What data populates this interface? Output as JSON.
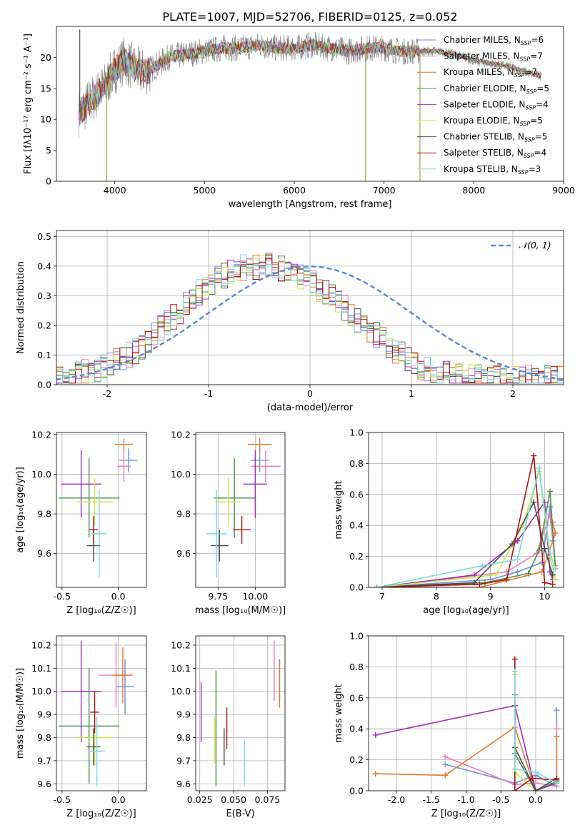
{
  "figure_title": "PLATE=1007, MJD=52706, FIBERID=0125, z=0.052",
  "model_names": [
    "Chabrier MILES",
    "Salpeter MILES",
    "Kroupa MILES",
    "Chabrier ELODIE",
    "Salpeter ELODIE",
    "Kroupa ELODIE",
    "Chabrier STELIB",
    "Salpeter STELIB",
    "Kroupa STELIB"
  ],
  "model_colors": [
    "#6f8fd8",
    "#e57fb8",
    "#e07b2a",
    "#4f8a4f",
    "#9b30b0",
    "#c8e84a",
    "#4a4a4a",
    "#b01010",
    "#7fd8d8"
  ],
  "chart_data": [
    {
      "type": "line",
      "id": "spectrum",
      "title": "PLATE=1007, MJD=52706, FIBERID=0125, z=0.052",
      "xlabel": "wavelength [Angstrom, rest frame]",
      "ylabel": "Flux [f_λ 10^-17 erg cm^-2 s^-1 A^-1]",
      "xlim": [
        3350,
        9000
      ],
      "ylim": [
        0,
        25
      ],
      "xticks": [
        4000,
        5000,
        6000,
        7000,
        8000,
        9000
      ],
      "yticks": [
        0,
        5,
        10,
        15,
        20
      ],
      "legend_position": "top-right",
      "legend": [
        {
          "label": "Chabrier MILES",
          "n": "6"
        },
        {
          "label": "Salpeter MILES",
          "n": "7"
        },
        {
          "label": "Kroupa MILES",
          "n": "7"
        },
        {
          "label": "Chabrier ELODIE",
          "n": "5"
        },
        {
          "label": "Salpeter ELODIE",
          "n": "4"
        },
        {
          "label": "Kroupa ELODIE",
          "n": "5"
        },
        {
          "label": "Chabrier STELIB",
          "n": "5"
        },
        {
          "label": "Salpeter STELIB",
          "n": "4"
        },
        {
          "label": "Kroupa STELIB",
          "n": "3"
        }
      ],
      "continuum": {
        "x": [
          3600,
          3700,
          3800,
          3900,
          4000,
          4100,
          4200,
          4300,
          4400,
          4600,
          4800,
          5000,
          5200,
          5400,
          5600,
          5800,
          6000,
          6200,
          6400,
          6600,
          6800,
          7000,
          7200,
          7400,
          7600,
          7800,
          8000,
          8200,
          8400,
          8600,
          8750
        ],
        "y": [
          11.0,
          12.5,
          14.0,
          15.5,
          18.0,
          19.5,
          18.5,
          17.5,
          18.0,
          20.0,
          20.5,
          21.0,
          21.5,
          21.5,
          22.0,
          21.5,
          21.5,
          22.0,
          21.5,
          21.0,
          21.5,
          21.5,
          21.0,
          21.0,
          21.0,
          20.5,
          19.5,
          19.0,
          18.5,
          17.5,
          17.0
        ]
      },
      "spikes": [
        {
          "x": 3610,
          "y": 24.5
        },
        {
          "x": 3910,
          "y": 0
        },
        {
          "x": 6795,
          "y": 0
        },
        {
          "x": 7400,
          "y": 0
        }
      ]
    },
    {
      "type": "step",
      "id": "residuals",
      "xlabel": "(data-model)/error",
      "ylabel": "Normed distribution",
      "xlim": [
        -2.5,
        2.5
      ],
      "ylim": [
        0,
        0.52
      ],
      "xticks": [
        -2,
        -1,
        0,
        1,
        2
      ],
      "yticks": [
        0.0,
        0.1,
        0.2,
        0.3,
        0.4,
        0.5
      ],
      "legend_position": "top-right",
      "legend_label": "N(0, 1)",
      "bin_width": 0.1,
      "x_start": -2.5,
      "base": [
        0.02,
        0.025,
        0.03,
        0.035,
        0.04,
        0.045,
        0.05,
        0.06,
        0.07,
        0.08,
        0.09,
        0.1,
        0.115,
        0.13,
        0.15,
        0.17,
        0.19,
        0.21,
        0.23,
        0.25,
        0.27,
        0.29,
        0.31,
        0.33,
        0.345,
        0.36,
        0.37,
        0.38,
        0.39,
        0.395,
        0.4,
        0.4,
        0.405,
        0.4,
        0.395,
        0.39,
        0.385,
        0.375,
        0.365,
        0.355,
        0.34,
        0.325,
        0.31,
        0.295,
        0.28,
        0.26,
        0.24,
        0.22,
        0.2,
        0.185,
        0.17,
        0.15,
        0.13,
        0.115,
        0.1,
        0.085,
        0.07,
        0.06,
        0.05,
        0.045,
        0.04,
        0.035,
        0.032,
        0.03,
        0.028,
        0.027,
        0.026,
        0.025,
        0.025,
        0.024,
        0.024,
        0.023,
        0.023,
        0.022,
        0.022,
        0.022,
        0.021,
        0.021,
        0.02,
        0.02
      ]
    },
    {
      "type": "errorbar",
      "id": "age_vs_Z",
      "xlabel": "Z [log10(Z/Z_sun)]",
      "ylabel": "age [log10(age/yr)]",
      "xlim": [
        -0.55,
        0.25
      ],
      "ylim": [
        9.43,
        10.21
      ],
      "xticks": [
        -0.5,
        0.0
      ],
      "yticks": [
        9.6,
        9.8,
        10.0,
        10.2
      ],
      "points": [
        {
          "model": 0,
          "x": 0.09,
          "y": 10.07,
          "xerr": 0.08,
          "yerr": 0.06
        },
        {
          "model": 1,
          "x": 0.05,
          "y": 10.04,
          "xerr": 0.06,
          "yerr": 0.08
        },
        {
          "model": 2,
          "x": 0.05,
          "y": 10.15,
          "xerr": 0.08,
          "yerr": 0.03
        },
        {
          "model": 3,
          "x": -0.26,
          "y": 9.88,
          "xerr": 0.27,
          "yerr": 0.2
        },
        {
          "model": 4,
          "x": -0.33,
          "y": 9.95,
          "xerr": 0.18,
          "yerr": 0.17
        },
        {
          "model": 5,
          "x": -0.21,
          "y": 9.86,
          "xerr": 0.16,
          "yerr": 0.12
        },
        {
          "model": 6,
          "x": -0.22,
          "y": 9.64,
          "xerr": 0.06,
          "yerr": 0.08
        },
        {
          "model": 7,
          "x": -0.22,
          "y": 9.72,
          "xerr": 0.04,
          "yerr": 0.07
        },
        {
          "model": 8,
          "x": -0.17,
          "y": 9.7,
          "xerr": 0.07,
          "yerr": 0.22
        }
      ]
    },
    {
      "type": "errorbar",
      "id": "age_vs_mass",
      "xlabel": "mass [log10(M/M_sun)]",
      "ylabel": "",
      "xlim": [
        9.6,
        10.2
      ],
      "ylim": [
        9.43,
        10.21
      ],
      "xticks": [
        9.75,
        10.0
      ],
      "yticks": [
        9.6,
        9.8,
        10.0,
        10.2
      ],
      "points": [
        {
          "model": 0,
          "x": 10.03,
          "y": 10.07,
          "xerr": 0.06,
          "yerr": 0.06
        },
        {
          "model": 1,
          "x": 10.07,
          "y": 10.04,
          "xerr": 0.1,
          "yerr": 0.08
        },
        {
          "model": 2,
          "x": 10.03,
          "y": 10.15,
          "xerr": 0.08,
          "yerr": 0.03
        },
        {
          "model": 3,
          "x": 9.86,
          "y": 9.88,
          "xerr": 0.14,
          "yerr": 0.2
        },
        {
          "model": 4,
          "x": 10.0,
          "y": 9.95,
          "xerr": 0.08,
          "yerr": 0.17
        },
        {
          "model": 5,
          "x": 9.82,
          "y": 9.86,
          "xerr": 0.08,
          "yerr": 0.12
        },
        {
          "model": 6,
          "x": 9.76,
          "y": 9.64,
          "xerr": 0.06,
          "yerr": 0.08
        },
        {
          "model": 7,
          "x": 9.91,
          "y": 9.72,
          "xerr": 0.06,
          "yerr": 0.07
        },
        {
          "model": 8,
          "x": 9.74,
          "y": 9.7,
          "xerr": 0.07,
          "yerr": 0.22
        }
      ]
    },
    {
      "type": "line",
      "id": "weight_vs_age",
      "xlabel": "age [log10(age/yr)]",
      "ylabel": "mass weight",
      "xlim": [
        6.75,
        10.35
      ],
      "ylim": [
        0,
        1.0
      ],
      "xticks": [
        7,
        8,
        9,
        10
      ],
      "yticks": [
        0.0,
        0.2,
        0.4,
        0.6,
        0.8,
        1.0
      ],
      "series": [
        {
          "model": 0,
          "x": [
            6.9,
            9.0,
            9.5,
            9.95,
            10.1,
            10.15
          ],
          "y": [
            0.0,
            0.05,
            0.1,
            0.16,
            0.52,
            0.3
          ]
        },
        {
          "model": 1,
          "x": [
            6.9,
            9.3,
            9.85,
            10.1,
            10.2
          ],
          "y": [
            0.0,
            0.1,
            0.22,
            0.47,
            0.14
          ]
        },
        {
          "model": 2,
          "x": [
            6.9,
            8.8,
            9.95,
            10.2,
            10.15
          ],
          "y": [
            0.0,
            0.0,
            0.1,
            0.35,
            0.42
          ]
        },
        {
          "model": 3,
          "x": [
            6.9,
            8.9,
            9.7,
            9.9,
            10.1,
            10.2
          ],
          "y": [
            0.0,
            0.03,
            0.09,
            0.24,
            0.62,
            0.12
          ]
        },
        {
          "model": 4,
          "x": [
            6.9,
            8.7,
            9.5,
            10.0,
            10.1,
            10.15
          ],
          "y": [
            0.0,
            0.08,
            0.3,
            0.55,
            0.1,
            0.05
          ]
        },
        {
          "model": 5,
          "x": [
            6.9,
            9.1,
            9.6,
            9.9,
            10.1,
            10.2
          ],
          "y": [
            0.0,
            0.08,
            0.4,
            0.75,
            0.2,
            0.05
          ]
        },
        {
          "model": 6,
          "x": [
            6.9,
            8.7,
            9.4,
            9.8,
            10.0,
            10.15
          ],
          "y": [
            0.0,
            0.03,
            0.28,
            0.55,
            0.25,
            0.08
          ]
        },
        {
          "model": 7,
          "x": [
            6.9,
            8.8,
            9.3,
            9.8,
            10.0,
            10.15
          ],
          "y": [
            0.0,
            0.02,
            0.05,
            0.85,
            0.03,
            0.02
          ]
        },
        {
          "model": 8,
          "x": [
            6.9,
            8.85,
            9.5,
            9.9,
            10.1,
            10.2
          ],
          "y": [
            0.0,
            0.14,
            0.18,
            0.77,
            0.22,
            0.12
          ]
        }
      ]
    },
    {
      "type": "errorbar",
      "id": "mass_vs_Z",
      "xlabel": "Z [log10(Z/Z_sun)]",
      "ylabel": "mass [log10(M/M_sun)]",
      "xlim": [
        -0.55,
        0.25
      ],
      "ylim": [
        9.57,
        10.24
      ],
      "xticks": [
        -0.5,
        0.0
      ],
      "yticks": [
        9.6,
        9.7,
        9.8,
        9.9,
        10.0,
        10.1,
        10.2
      ],
      "points": [
        {
          "model": 0,
          "x": 0.06,
          "y": 10.02,
          "xerr": 0.08,
          "yerr": 0.12
        },
        {
          "model": 1,
          "x": -0.02,
          "y": 10.07,
          "xerr": 0.15,
          "yerr": 0.14
        },
        {
          "model": 2,
          "x": 0.04,
          "y": 10.07,
          "xerr": 0.08,
          "yerr": 0.12
        },
        {
          "model": 3,
          "x": -0.26,
          "y": 9.85,
          "xerr": 0.27,
          "yerr": 0.25
        },
        {
          "model": 4,
          "x": -0.33,
          "y": 10.0,
          "xerr": 0.18,
          "yerr": 0.22
        },
        {
          "model": 5,
          "x": -0.21,
          "y": 9.8,
          "xerr": 0.16,
          "yerr": 0.12
        },
        {
          "model": 6,
          "x": -0.22,
          "y": 9.76,
          "xerr": 0.06,
          "yerr": 0.08
        },
        {
          "model": 7,
          "x": -0.21,
          "y": 9.91,
          "xerr": 0.04,
          "yerr": 0.09
        },
        {
          "model": 8,
          "x": -0.19,
          "y": 9.74,
          "xerr": 0.07,
          "yerr": 0.15
        }
      ]
    },
    {
      "type": "errorbar",
      "id": "mass_vs_ebv",
      "xlabel": "E(B-V)",
      "ylabel": "",
      "xlim": [
        0.022,
        0.088
      ],
      "ylim": [
        9.57,
        10.24
      ],
      "xticks": [
        0.025,
        0.05,
        0.075
      ],
      "yticks": [
        9.6,
        9.7,
        9.8,
        9.9,
        10.0,
        10.1,
        10.2
      ],
      "points": [
        {
          "model": 0,
          "x": 0.084,
          "y": 10.05,
          "xerr": 0,
          "yerr": 0.09
        },
        {
          "model": 1,
          "x": 0.08,
          "y": 10.09,
          "xerr": 0,
          "yerr": 0.13
        },
        {
          "model": 2,
          "x": 0.084,
          "y": 10.03,
          "xerr": 0,
          "yerr": 0.1
        },
        {
          "model": 3,
          "x": 0.037,
          "y": 9.84,
          "xerr": 0,
          "yerr": 0.25
        },
        {
          "model": 4,
          "x": 0.026,
          "y": 9.91,
          "xerr": 0,
          "yerr": 0.13
        },
        {
          "model": 5,
          "x": 0.036,
          "y": 9.79,
          "xerr": 0,
          "yerr": 0.1
        },
        {
          "model": 6,
          "x": 0.043,
          "y": 9.76,
          "xerr": 0,
          "yerr": 0.08
        },
        {
          "model": 7,
          "x": 0.045,
          "y": 9.84,
          "xerr": 0,
          "yerr": 0.09
        },
        {
          "model": 8,
          "x": 0.058,
          "y": 9.69,
          "xerr": 0,
          "yerr": 0.1
        }
      ]
    },
    {
      "type": "line",
      "id": "weight_vs_Z",
      "xlabel": "Z [log10(Z/Z_sun)]",
      "ylabel": "mass weight",
      "xlim": [
        -2.4,
        0.4
      ],
      "ylim": [
        0,
        1.0
      ],
      "xticks": [
        -2.0,
        -1.5,
        -1.0,
        -0.5,
        0.0
      ],
      "yticks": [
        0.0,
        0.2,
        0.4,
        0.6,
        0.8,
        1.0
      ],
      "series": [
        {
          "model": 0,
          "x": [
            -1.3,
            -0.3,
            0.0,
            0.3,
            0.3
          ],
          "y": [
            0.17,
            0.05,
            0.1,
            0.03,
            0.52
          ]
        },
        {
          "model": 1,
          "x": [
            -1.3,
            -0.3,
            0.0,
            0.3,
            0.3
          ],
          "y": [
            0.22,
            0.04,
            0.05,
            0.03,
            0.4
          ]
        },
        {
          "model": 2,
          "x": [
            -2.3,
            -1.3,
            -0.3,
            0.0,
            0.3,
            0.3
          ],
          "y": [
            0.11,
            0.1,
            0.41,
            0.0,
            0.05,
            0.35
          ]
        },
        {
          "model": 3,
          "x": [
            -0.3,
            -0.3,
            0.0,
            0.3
          ],
          "y": [
            0.62,
            0.24,
            0.0,
            0.06
          ]
        },
        {
          "model": 4,
          "x": [
            -2.3,
            -0.3,
            0.0,
            0.3
          ],
          "y": [
            0.36,
            0.55,
            0.0,
            0.05
          ]
        },
        {
          "model": 5,
          "x": [
            -0.3,
            -0.3,
            0.0,
            0.3
          ],
          "y": [
            0.75,
            0.12,
            0.0,
            0.08
          ]
        },
        {
          "model": 6,
          "x": [
            -0.3,
            -0.3,
            0.0,
            0.3
          ],
          "y": [
            0.55,
            0.28,
            0.0,
            0.08
          ]
        },
        {
          "model": 7,
          "x": [
            -0.3,
            -0.3,
            -0.05,
            0.3
          ],
          "y": [
            0.85,
            0.0,
            0.08,
            0.07
          ]
        },
        {
          "model": 8,
          "x": [
            -0.3,
            -0.3,
            0.0,
            0.3
          ],
          "y": [
            0.77,
            0.14,
            0.12,
            0.05
          ]
        }
      ]
    }
  ]
}
